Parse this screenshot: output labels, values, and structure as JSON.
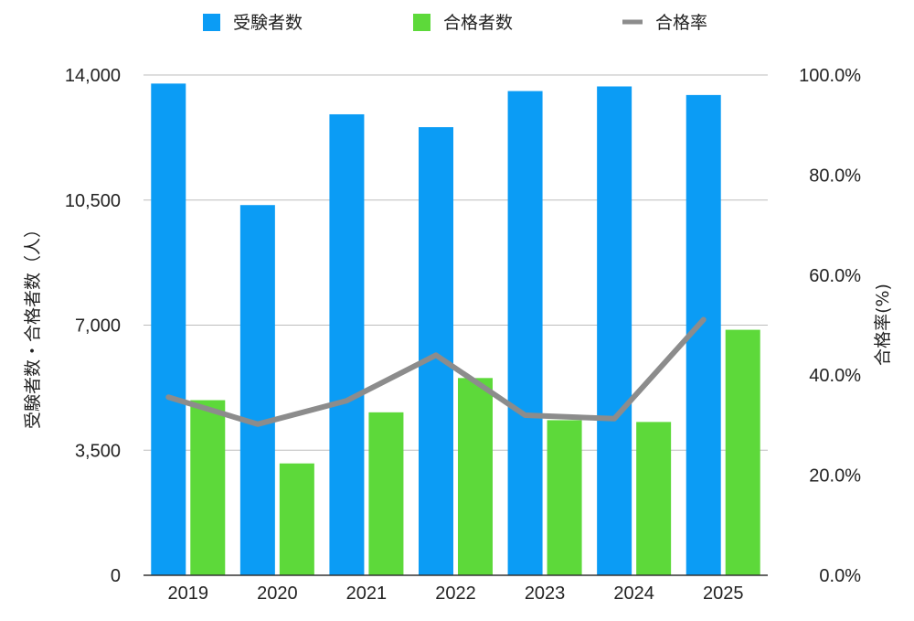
{
  "chart_data": {
    "type": "bar",
    "categories": [
      "2019",
      "2020",
      "2021",
      "2022",
      "2023",
      "2024",
      "2025"
    ],
    "series": [
      {
        "name": "受験者数",
        "type": "bar",
        "axis": "left",
        "color": "#0B9CF5",
        "values": [
          13760,
          10360,
          12900,
          12540,
          13550,
          13680,
          13440
        ]
      },
      {
        "name": "合格者数",
        "type": "bar",
        "axis": "left",
        "color": "#5DD93A",
        "values": [
          4900,
          3130,
          4560,
          5520,
          4340,
          4290,
          6870
        ]
      },
      {
        "name": "合格率",
        "type": "line",
        "axis": "right",
        "color": "#8C8C8C",
        "values": [
          35.6,
          30.2,
          34.9,
          44.0,
          32.0,
          31.3,
          51.1
        ]
      }
    ],
    "ylabel": "受験者数・合格者数（人）",
    "y2label": "合格率(%)",
    "ylim": [
      0,
      14000
    ],
    "y2lim": [
      0,
      100
    ],
    "yticks": [
      "0",
      "3,500",
      "7,000",
      "10,500",
      "14,000"
    ],
    "y2ticks": [
      "0.0%",
      "20.0%",
      "40.0%",
      "60.0%",
      "80.0%",
      "100.0%"
    ],
    "grid": true,
    "legend_position": "top"
  }
}
